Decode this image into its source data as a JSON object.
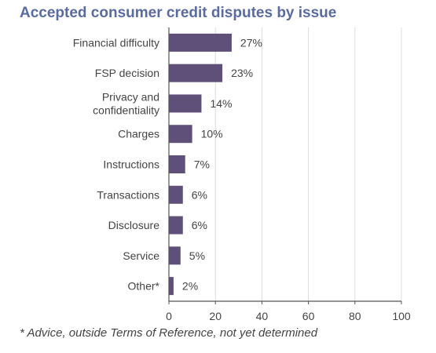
{
  "title": "Accepted consumer credit disputes by issue",
  "footnote": "* Advice, outside Terms of Reference, not yet determined",
  "colors": {
    "bar": "#5e5078",
    "title": "#5a6b9e",
    "text": "#444444",
    "grid": "#dddddd",
    "axis": "#555555"
  },
  "chart_data": {
    "type": "bar",
    "orientation": "horizontal",
    "title": "Accepted consumer credit disputes by issue",
    "categories": [
      [
        "Financial difficulty"
      ],
      [
        "FSP decision"
      ],
      [
        "Privacy and",
        "confidentiality"
      ],
      [
        "Charges"
      ],
      [
        "Instructions"
      ],
      [
        "Transactions"
      ],
      [
        "Disclosure"
      ],
      [
        "Service"
      ],
      [
        "Other*"
      ]
    ],
    "values": [
      27,
      23,
      14,
      10,
      7,
      6,
      6,
      5,
      2
    ],
    "value_labels": [
      "27%",
      "23%",
      "14%",
      "10%",
      "7%",
      "6%",
      "6%",
      "5%",
      "2%"
    ],
    "xlim": [
      0,
      100
    ],
    "xticks": [
      0,
      20,
      40,
      60,
      80,
      100
    ],
    "xlabel": "",
    "ylabel": "",
    "grid": true,
    "legend": "none"
  }
}
